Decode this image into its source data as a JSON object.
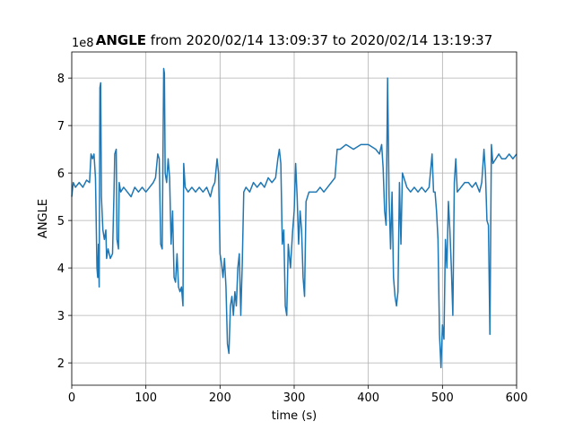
{
  "chart_data": {
    "type": "line",
    "title_variable": "ANGLE",
    "title": "from 2020/02/14 13:09:37 to 2020/02/14 13:19:37",
    "xlabel": "time (s)",
    "ylabel": "ANGLE",
    "y_offset_text": "1e8",
    "xlim": [
      0,
      600
    ],
    "ylim": [
      1.53,
      8.55
    ],
    "xticks": [
      0,
      100,
      200,
      300,
      400,
      500,
      600
    ],
    "yticks": [
      2,
      3,
      4,
      5,
      6,
      7,
      8
    ],
    "grid": true,
    "color": "#1f77b4",
    "x": [
      0,
      2,
      5,
      10,
      15,
      20,
      24,
      26,
      28,
      30,
      32,
      34,
      35,
      36,
      37,
      38,
      39,
      40,
      42,
      44,
      46,
      47,
      49,
      52,
      55,
      57,
      58,
      60,
      61,
      63,
      64,
      66,
      70,
      75,
      80,
      85,
      90,
      95,
      100,
      105,
      110,
      113,
      116,
      118,
      120,
      122,
      124,
      125,
      126,
      128,
      130,
      132,
      134,
      136,
      138,
      140,
      142,
      144,
      146,
      148,
      150,
      151,
      153,
      157,
      162,
      167,
      172,
      177,
      182,
      187,
      190,
      193,
      196,
      198,
      200,
      202,
      204,
      206,
      208,
      210,
      212,
      214,
      216,
      218,
      220,
      222,
      224,
      226,
      228,
      230,
      232,
      235,
      240,
      245,
      250,
      255,
      260,
      265,
      270,
      275,
      278,
      280,
      282,
      284,
      286,
      288,
      290,
      292,
      295,
      298,
      300,
      302,
      304,
      306,
      308,
      310,
      312,
      314,
      316,
      320,
      325,
      330,
      335,
      340,
      345,
      350,
      355,
      358,
      362,
      370,
      380,
      390,
      400,
      410,
      415,
      418,
      420,
      422,
      424,
      426,
      428,
      430,
      432,
      434,
      436,
      438,
      440,
      442,
      444,
      446,
      448,
      452,
      457,
      462,
      467,
      472,
      477,
      482,
      486,
      488,
      490,
      492,
      494,
      496,
      498,
      500,
      502,
      504,
      506,
      508,
      510,
      512,
      514,
      516,
      518,
      520,
      525,
      530,
      535,
      540,
      545,
      550,
      553,
      556,
      558,
      560,
      562,
      564,
      566,
      568,
      572,
      576,
      580,
      585,
      590,
      595,
      600
    ],
    "values": [
      5.5,
      5.8,
      5.7,
      5.8,
      5.7,
      5.85,
      5.8,
      6.4,
      6.3,
      6.4,
      5.9,
      4.0,
      3.8,
      4.5,
      3.6,
      7.8,
      7.9,
      5.5,
      4.8,
      4.6,
      4.8,
      4.2,
      4.4,
      4.2,
      4.3,
      5.6,
      6.4,
      6.5,
      4.6,
      4.4,
      5.8,
      5.6,
      5.7,
      5.6,
      5.5,
      5.7,
      5.6,
      5.7,
      5.6,
      5.7,
      5.8,
      5.9,
      6.4,
      6.3,
      4.5,
      4.4,
      8.2,
      8.1,
      6.0,
      5.8,
      6.3,
      5.9,
      4.5,
      5.2,
      3.8,
      3.7,
      4.3,
      3.6,
      3.5,
      3.6,
      3.2,
      6.2,
      5.7,
      5.6,
      5.7,
      5.6,
      5.7,
      5.6,
      5.7,
      5.5,
      5.7,
      5.8,
      6.3,
      6.0,
      4.3,
      4.1,
      3.8,
      4.2,
      3.6,
      2.4,
      2.2,
      3.2,
      3.4,
      3.0,
      3.5,
      3.2,
      4.0,
      4.3,
      3.0,
      4.1,
      5.6,
      5.7,
      5.6,
      5.8,
      5.7,
      5.8,
      5.7,
      5.9,
      5.8,
      5.9,
      6.3,
      6.5,
      6.2,
      4.5,
      4.8,
      3.2,
      3.0,
      4.5,
      4.0,
      4.8,
      5.2,
      6.2,
      5.5,
      4.5,
      5.2,
      4.8,
      3.8,
      3.4,
      5.4,
      5.6,
      5.6,
      5.6,
      5.7,
      5.6,
      5.7,
      5.8,
      5.9,
      6.5,
      6.5,
      6.6,
      6.5,
      6.6,
      6.6,
      6.5,
      6.4,
      6.6,
      6.1,
      5.2,
      4.9,
      8.0,
      5.5,
      4.4,
      5.6,
      3.8,
      3.4,
      3.2,
      3.5,
      5.8,
      4.5,
      6.0,
      5.9,
      5.7,
      5.6,
      5.7,
      5.6,
      5.7,
      5.6,
      5.7,
      6.4,
      5.6,
      5.6,
      5.2,
      4.6,
      2.6,
      1.9,
      2.8,
      2.5,
      4.6,
      4.0,
      5.4,
      4.8,
      4.0,
      3.0,
      5.8,
      6.3,
      5.6,
      5.7,
      5.8,
      5.8,
      5.7,
      5.8,
      5.6,
      5.8,
      6.5,
      6.0,
      5.0,
      4.9,
      2.6,
      6.6,
      6.2,
      6.3,
      6.4,
      6.3,
      6.3,
      6.4,
      6.3,
      6.4
    ]
  }
}
